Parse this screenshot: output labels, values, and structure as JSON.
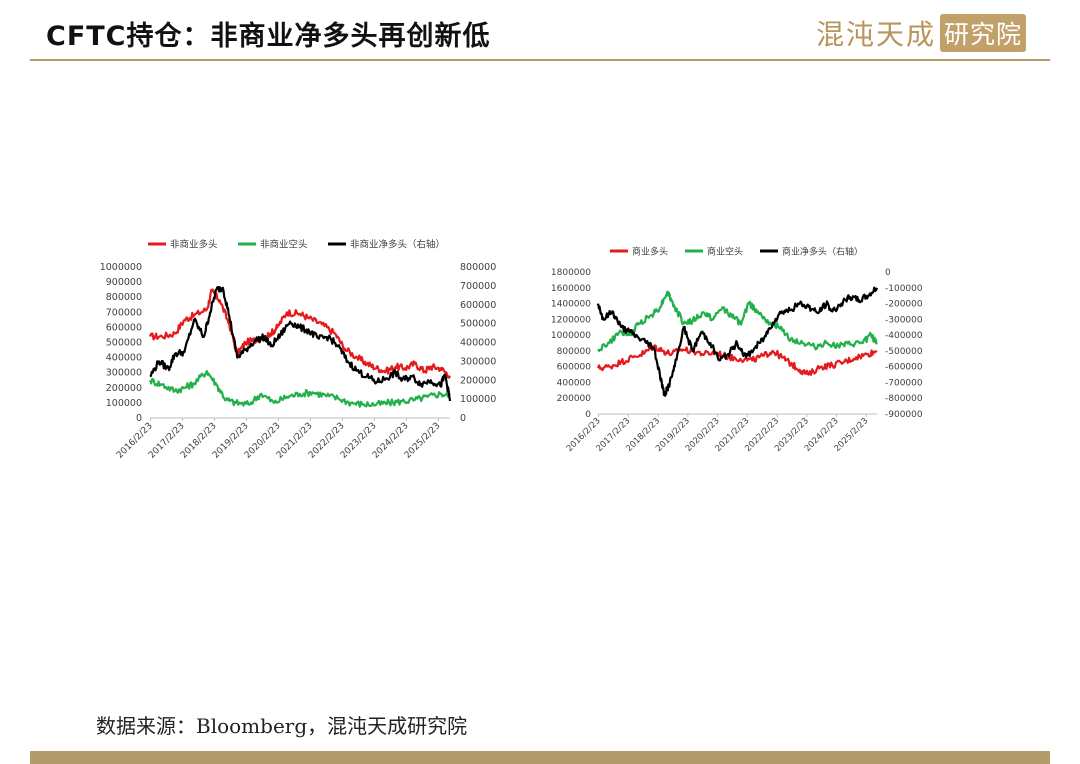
{
  "header": {
    "title": "CFTC持仓：非商业净多头再创新低",
    "logo_text": "混沌天成",
    "logo_box": "研究院"
  },
  "footer": {
    "source": "数据来源：Bloomberg，混沌天成研究院"
  },
  "colors": {
    "red": "#e41a1c",
    "green": "#22b04a",
    "black": "#000000",
    "gold": "#b39a6b"
  },
  "chart_data": [
    {
      "type": "line",
      "x_ticks": [
        "2016/2/23",
        "2017/2/23",
        "2018/2/23",
        "2019/2/23",
        "2020/2/23",
        "2021/2/23",
        "2022/2/23",
        "2023/2/23",
        "2024/2/23",
        "2025/2/23"
      ],
      "x_range": [
        2016.12,
        2025.5
      ],
      "y_left": {
        "min": 0,
        "max": 1000000,
        "ticks": [
          "0",
          "100000",
          "200000",
          "300000",
          "400000",
          "500000",
          "600000",
          "700000",
          "800000",
          "900000",
          "1000000"
        ]
      },
      "y_right": {
        "min": 0,
        "max": 800000,
        "ticks": [
          "0",
          "100000",
          "200000",
          "300000",
          "400000",
          "500000",
          "600000",
          "700000",
          "800000"
        ]
      },
      "grid": false,
      "legend_position": "top",
      "series": [
        {
          "name": "非商业多头",
          "color": "#e41a1c",
          "axis": "left",
          "x": [
            2016.12,
            2016.5,
            2016.9,
            2017.2,
            2017.5,
            2017.9,
            2018.05,
            2018.3,
            2018.6,
            2018.85,
            2019.1,
            2019.5,
            2019.9,
            2020.1,
            2020.4,
            2020.8,
            2021.1,
            2021.5,
            2021.9,
            2022.2,
            2022.6,
            2022.9,
            2023.2,
            2023.5,
            2023.8,
            2024.1,
            2024.4,
            2024.7,
            2024.9,
            2025.2,
            2025.5
          ],
          "values": [
            540000,
            540000,
            560000,
            650000,
            680000,
            720000,
            840000,
            780000,
            620000,
            420000,
            500000,
            520000,
            560000,
            600000,
            700000,
            690000,
            660000,
            620000,
            560000,
            460000,
            400000,
            360000,
            330000,
            310000,
            340000,
            330000,
            360000,
            310000,
            340000,
            330000,
            280000
          ]
        },
        {
          "name": "非商业空头",
          "color": "#22b04a",
          "axis": "left",
          "x": [
            2016.12,
            2016.5,
            2016.9,
            2017.2,
            2017.5,
            2017.9,
            2018.2,
            2018.5,
            2018.8,
            2019.2,
            2019.6,
            2020.0,
            2020.4,
            2020.8,
            2021.2,
            2021.6,
            2022.0,
            2022.4,
            2022.8,
            2023.2,
            2023.6,
            2024.0,
            2024.4,
            2024.8,
            2025.2,
            2025.5
          ],
          "values": [
            250000,
            220000,
            180000,
            200000,
            230000,
            310000,
            220000,
            120000,
            100000,
            90000,
            160000,
            100000,
            140000,
            160000,
            170000,
            150000,
            130000,
            100000,
            90000,
            90000,
            100000,
            110000,
            120000,
            140000,
            160000,
            150000
          ]
        },
        {
          "name": "非商业净多头（右轴）",
          "color": "#000000",
          "axis": "right",
          "x": [
            2016.12,
            2016.4,
            2016.7,
            2016.9,
            2017.2,
            2017.5,
            2017.8,
            2018.0,
            2018.2,
            2018.4,
            2018.6,
            2018.85,
            2019.1,
            2019.4,
            2019.7,
            2019.9,
            2020.2,
            2020.5,
            2020.8,
            2021.1,
            2021.4,
            2021.7,
            2022.0,
            2022.3,
            2022.6,
            2022.9,
            2023.2,
            2023.5,
            2023.8,
            2024.0,
            2024.3,
            2024.6,
            2024.9,
            2025.2,
            2025.35,
            2025.5
          ],
          "values": [
            220000,
            300000,
            260000,
            340000,
            350000,
            520000,
            430000,
            560000,
            680000,
            690000,
            540000,
            320000,
            360000,
            410000,
            430000,
            380000,
            440000,
            510000,
            480000,
            460000,
            420000,
            430000,
            380000,
            300000,
            250000,
            220000,
            190000,
            210000,
            240000,
            200000,
            220000,
            180000,
            200000,
            170000,
            230000,
            90000
          ]
        }
      ]
    },
    {
      "type": "line",
      "x_ticks": [
        "2016/2/23",
        "2017/2/23",
        "2018/2/23",
        "2019/2/23",
        "2020/2/23",
        "2021/2/23",
        "2022/2/23",
        "2023/2/23",
        "2024/2/23",
        "2025/2/23"
      ],
      "x_range": [
        2016.12,
        2025.5
      ],
      "y_left": {
        "min": 0,
        "max": 1800000,
        "ticks": [
          "0",
          "200000",
          "400000",
          "600000",
          "800000",
          "1000000",
          "1200000",
          "1400000",
          "1600000",
          "1800000"
        ]
      },
      "y_right": {
        "min": -900000,
        "max": 0,
        "ticks": [
          "0",
          "-100000",
          "-200000",
          "-300000",
          "-400000",
          "-500000",
          "-600000",
          "-700000",
          "-800000",
          "-900000"
        ]
      },
      "grid": false,
      "legend_position": "top",
      "series": [
        {
          "name": "商业多头",
          "color": "#e41a1c",
          "axis": "left",
          "x": [
            2016.12,
            2016.5,
            2016.9,
            2017.3,
            2017.7,
            2018.0,
            2018.3,
            2018.6,
            2018.9,
            2019.3,
            2019.7,
            2020.1,
            2020.5,
            2020.9,
            2021.3,
            2021.7,
            2022.0,
            2022.3,
            2022.6,
            2022.9,
            2023.2,
            2023.6,
            2024.0,
            2024.4,
            2024.8,
            2025.2,
            2025.5
          ],
          "values": [
            580000,
            600000,
            660000,
            720000,
            780000,
            860000,
            800000,
            760000,
            820000,
            800000,
            760000,
            780000,
            720000,
            700000,
            680000,
            740000,
            800000,
            720000,
            640000,
            560000,
            500000,
            600000,
            620000,
            660000,
            720000,
            760000,
            800000
          ]
        },
        {
          "name": "商业空头",
          "color": "#22b04a",
          "axis": "left",
          "x": [
            2016.12,
            2016.5,
            2016.9,
            2017.2,
            2017.5,
            2017.9,
            2018.2,
            2018.45,
            2018.7,
            2019.0,
            2019.3,
            2019.7,
            2020.0,
            2020.3,
            2020.6,
            2020.9,
            2021.2,
            2021.5,
            2021.9,
            2022.2,
            2022.6,
            2023.0,
            2023.4,
            2023.8,
            2024.2,
            2024.6,
            2025.0,
            2025.3,
            2025.5
          ],
          "values": [
            820000,
            900000,
            1050000,
            1000000,
            1150000,
            1250000,
            1350000,
            1550000,
            1350000,
            1150000,
            1180000,
            1280000,
            1200000,
            1350000,
            1250000,
            1150000,
            1400000,
            1300000,
            1160000,
            1100000,
            950000,
            900000,
            850000,
            900000,
            860000,
            880000,
            900000,
            1000000,
            900000
          ]
        },
        {
          "name": "商业净多头（右轴）",
          "color": "#000000",
          "axis": "right",
          "x": [
            2016.12,
            2016.3,
            2016.6,
            2016.9,
            2017.2,
            2017.5,
            2017.8,
            2018.0,
            2018.2,
            2018.35,
            2018.5,
            2018.7,
            2019.0,
            2019.3,
            2019.6,
            2019.9,
            2020.2,
            2020.5,
            2020.8,
            2021.1,
            2021.4,
            2021.7,
            2022.0,
            2022.3,
            2022.6,
            2022.9,
            2023.2,
            2023.5,
            2023.8,
            2024.0,
            2024.3,
            2024.6,
            2024.9,
            2025.2,
            2025.5
          ],
          "values": [
            -200000,
            -300000,
            -250000,
            -350000,
            -380000,
            -420000,
            -450000,
            -480000,
            -650000,
            -780000,
            -720000,
            -600000,
            -350000,
            -500000,
            -380000,
            -450000,
            -560000,
            -520000,
            -450000,
            -540000,
            -480000,
            -420000,
            -320000,
            -250000,
            -240000,
            -200000,
            -220000,
            -260000,
            -200000,
            -250000,
            -200000,
            -160000,
            -180000,
            -150000,
            -100000
          ]
        }
      ]
    }
  ]
}
